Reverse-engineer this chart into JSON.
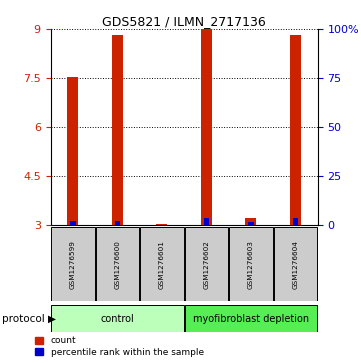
{
  "title": "GDS5821 / ILMN_2717136",
  "samples": [
    "GSM1276599",
    "GSM1276600",
    "GSM1276601",
    "GSM1276602",
    "GSM1276603",
    "GSM1276604"
  ],
  "red_values": [
    7.52,
    8.82,
    3.02,
    9.0,
    3.22,
    8.82
  ],
  "blue_values": [
    3.12,
    3.12,
    3.01,
    3.22,
    3.1,
    3.22
  ],
  "ymin": 3.0,
  "ymax": 9.0,
  "yticks_left": [
    3,
    4.5,
    6,
    7.5,
    9
  ],
  "yticks_right": [
    0,
    25,
    50,
    75,
    100
  ],
  "ylabel_left_color": "#cc2200",
  "ylabel_right_color": "#0000cc",
  "gridlines": [
    4.5,
    6.0,
    7.5,
    9.0
  ],
  "control_samples": [
    0,
    1,
    2
  ],
  "depletion_samples": [
    3,
    4,
    5
  ],
  "control_label": "control",
  "depletion_label": "myofibroblast depletion",
  "protocol_label": "protocol",
  "legend_red": "count",
  "legend_blue": "percentile rank within the sample",
  "bar_width": 0.25,
  "red_color": "#cc2200",
  "blue_color": "#0000cc",
  "control_bg": "#bbffbb",
  "depletion_bg": "#55ee55",
  "sample_box_bg": "#cccccc",
  "fig_width": 3.61,
  "fig_height": 3.63
}
